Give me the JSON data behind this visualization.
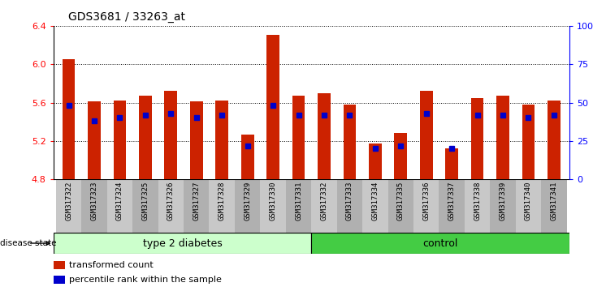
{
  "title": "GDS3681 / 33263_at",
  "samples": [
    "GSM317322",
    "GSM317323",
    "GSM317324",
    "GSM317325",
    "GSM317326",
    "GSM317327",
    "GSM317328",
    "GSM317329",
    "GSM317330",
    "GSM317331",
    "GSM317332",
    "GSM317333",
    "GSM317334",
    "GSM317335",
    "GSM317336",
    "GSM317337",
    "GSM317338",
    "GSM317339",
    "GSM317340",
    "GSM317341"
  ],
  "red_values": [
    6.05,
    5.61,
    5.62,
    5.67,
    5.72,
    5.61,
    5.62,
    5.27,
    6.31,
    5.67,
    5.7,
    5.58,
    5.17,
    5.28,
    5.72,
    5.12,
    5.65,
    5.67,
    5.58,
    5.62
  ],
  "blue_percentiles": [
    48,
    38,
    40,
    42,
    43,
    40,
    42,
    22,
    48,
    42,
    42,
    42,
    20,
    22,
    43,
    20,
    42,
    42,
    40,
    42
  ],
  "n_diabetes": 10,
  "n_control": 10,
  "ylim_left": [
    4.8,
    6.4
  ],
  "ylim_right": [
    0,
    100
  ],
  "y_ticks_left": [
    4.8,
    5.2,
    5.6,
    6.0,
    6.4
  ],
  "y_ticks_right": [
    0,
    25,
    50,
    75,
    100
  ],
  "y_tick_right_labels": [
    "0",
    "25",
    "50",
    "75",
    "100%"
  ],
  "bar_color": "#CC2200",
  "dot_color": "#0000CC",
  "bar_width": 0.5,
  "legend_items": [
    "transformed count",
    "percentile rank within the sample"
  ],
  "disease_state_label": "disease state",
  "group_labels": [
    "type 2 diabetes",
    "control"
  ],
  "group_light_color": "#ccffcc",
  "group_dark_color": "#44cc44",
  "tick_bg_light": "#c8c8c8",
  "tick_bg_dark": "#b0b0b0"
}
